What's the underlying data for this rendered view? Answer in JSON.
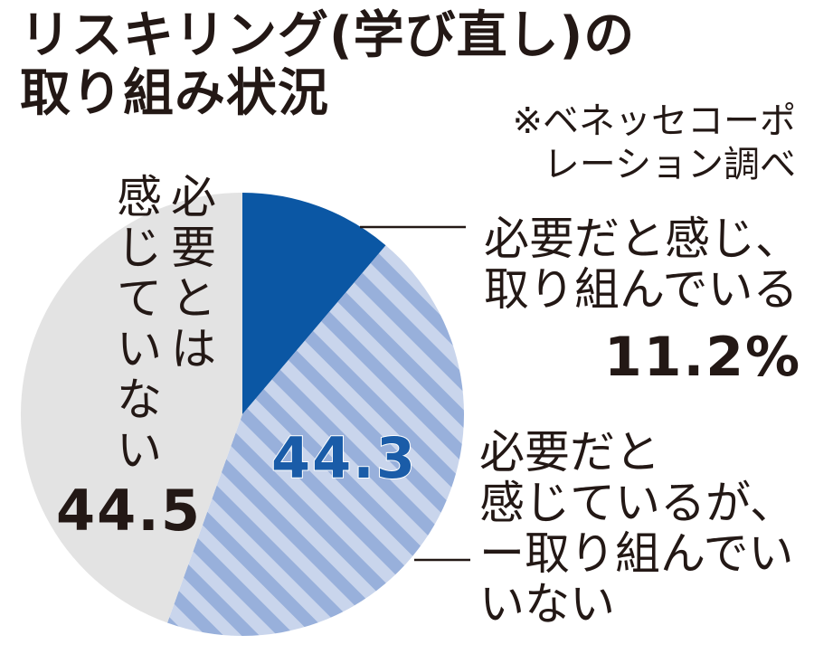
{
  "title": {
    "line1": "リスキリング(学び直し)の",
    "line2": "取り組み状況"
  },
  "source": {
    "line1": "※ベネッセコーポ",
    "line2": "レーション調べ"
  },
  "colors": {
    "solid": "#0b57a4",
    "stripe_light": "#c9d5ec",
    "stripe_dark": "#98b0db",
    "gray": "#e3e3e3"
  },
  "chart_data": {
    "type": "pie",
    "slices": [
      {
        "label": "必要だと感じ、取り組んでいる",
        "label_lines": [
          "必要だと感じ、",
          "取り組んでいる"
        ],
        "value": 11.2,
        "value_label": "11.2%"
      },
      {
        "label": "必要だと感じているが、取り組んでいない",
        "label_lines": [
          "必要だと",
          "感じているが、",
          "ー取り組んでい",
          "いない"
        ],
        "value": 44.3,
        "value_label": "44.3"
      },
      {
        "label": "必要とは感じていない",
        "label_cols": [
          "必要とは",
          "感じていない"
        ],
        "value": 44.5,
        "value_label": "44.5"
      }
    ]
  }
}
